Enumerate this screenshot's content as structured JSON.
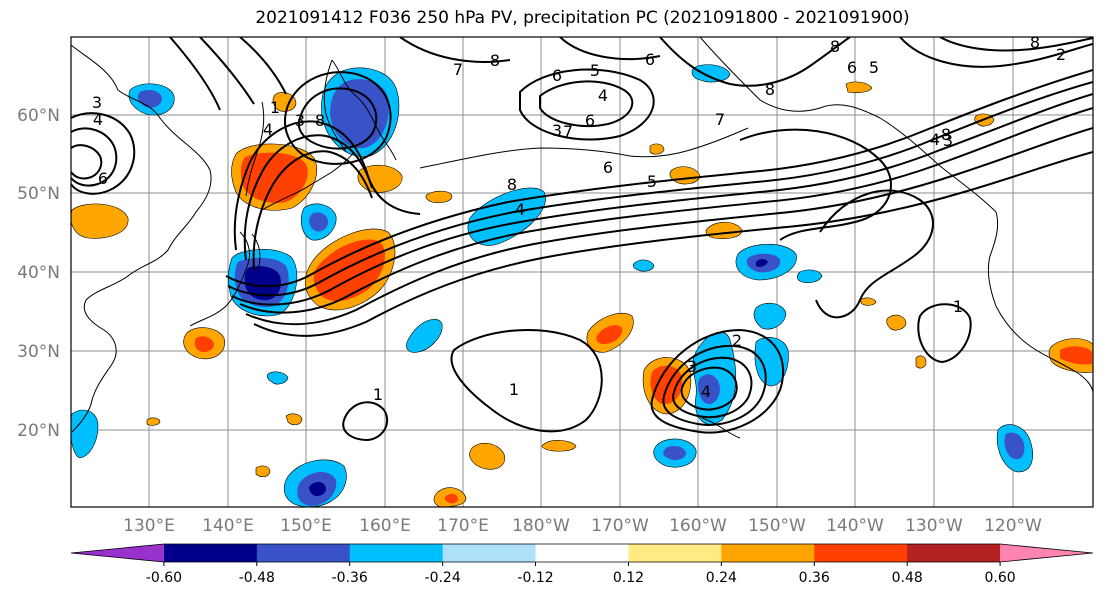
{
  "title": "2021091412 F036 250 hPa PV, precipitation PC (2021091800 - 2021091900)",
  "lat_labels": [
    "60°N",
    "50°N",
    "40°N",
    "30°N",
    "20°N"
  ],
  "lon_labels": [
    "130°E",
    "140°E",
    "150°E",
    "160°E",
    "170°E",
    "180°W",
    "170°W",
    "160°W",
    "150°W",
    "140°W",
    "130°W",
    "120°W"
  ],
  "colorbar": {
    "colors": [
      "#9932cc",
      "#00008b",
      "#3a52c8",
      "#00bfff",
      "#aee0fa",
      "#ffffff",
      "#ffeb84",
      "#ffa500",
      "#ff4000",
      "#b22222",
      "#ff85b0"
    ],
    "tick_labels": [
      "-0.60",
      "-0.48",
      "-0.36",
      "-0.24",
      "-0.12",
      "0.12",
      "0.24",
      "0.36",
      "0.48",
      "0.60"
    ]
  },
  "contour_labels": [
    "3",
    "4",
    "6",
    "7",
    "8",
    "6",
    "5",
    "4",
    "3",
    "4",
    "6",
    "7",
    "8",
    "8",
    "6",
    "5",
    "4",
    "3",
    "8",
    "2",
    "1",
    "1",
    "1",
    "2",
    "3",
    "4",
    "1",
    "8",
    "7",
    "6",
    "5",
    "4",
    "3",
    "8",
    "6",
    "8"
  ]
}
